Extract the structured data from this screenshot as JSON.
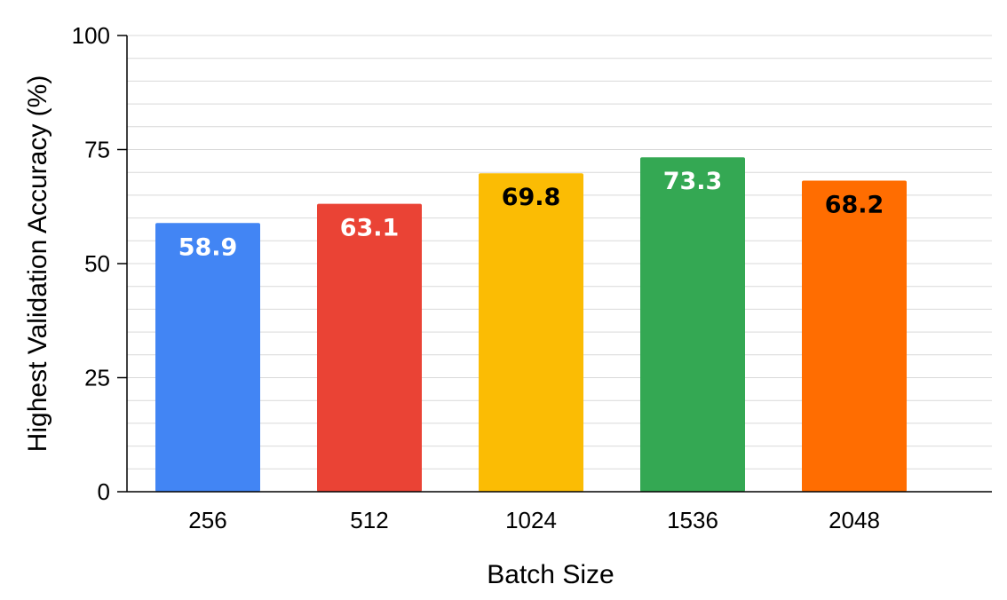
{
  "chart_data": {
    "type": "bar",
    "categories": [
      "256",
      "512",
      "1024",
      "1536",
      "2048"
    ],
    "values": [
      58.9,
      63.1,
      69.8,
      73.3,
      68.2
    ],
    "value_labels": [
      "58.9",
      "63.1",
      "69.8",
      "73.3",
      "68.2"
    ],
    "bar_colors": [
      "#4285f4",
      "#ea4335",
      "#fbbc04",
      "#34a853",
      "#ff6d01"
    ],
    "label_colors": [
      "#ffffff",
      "#ffffff",
      "#000000",
      "#ffffff",
      "#000000"
    ],
    "title": "",
    "xlabel": "Batch Size",
    "ylabel": "Highest Validation Accuracy (%)",
    "ylim": [
      0,
      100
    ],
    "yticks": [
      0,
      25,
      50,
      75,
      100
    ],
    "minor_grid_step": 5,
    "grid": true,
    "legend": "none"
  }
}
